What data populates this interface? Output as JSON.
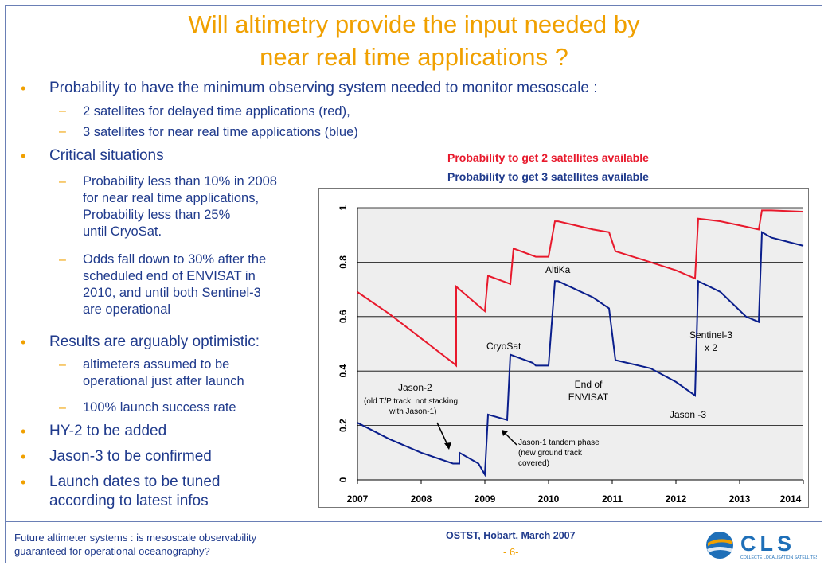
{
  "title": [
    "Will altimetry provide the input needed by",
    "near real time applications ?"
  ],
  "bullets": {
    "b1": "Probability to have the minimum observing system needed to monitor mesoscale :",
    "b1_s1": "2 satellites for delayed time applications (red),",
    "b1_s2": "3 satellites for near real time applications (blue)",
    "b2": "Critical situations",
    "b2_s1": [
      "Probability less than 10% in 2008",
      "for near real time applications,",
      "Probability less than 25%",
      "until CryoSat."
    ],
    "b2_s2": [
      "Odds fall down to 30% after the",
      "scheduled end of ENVISAT in",
      "2010, and until both Sentinel-3",
      "are operational"
    ],
    "b3": "Results are arguably optimistic:",
    "b3_s1": [
      "altimeters assumed to be",
      "operational just after launch"
    ],
    "b3_s2": "100% launch success rate",
    "b4": "HY-2 to be added",
    "b5": "Jason-3 to be confirmed",
    "b6": [
      "Launch dates to be tuned",
      "according to latest infos"
    ]
  },
  "legend": {
    "red": "Probability to get 2 satellites available",
    "blue": "Probability to get 3 satellites available"
  },
  "colors": {
    "red": "#e8192c",
    "blue": "#0a1e8c",
    "orange": "#f0a000",
    "text": "#1f3a8c"
  },
  "chart_data": {
    "type": "line",
    "xlim": [
      2007,
      2014
    ],
    "ylim": [
      0,
      1
    ],
    "x_ticks": [
      "2007",
      "2008",
      "2009",
      "2010",
      "2011",
      "2012",
      "2013",
      "2014"
    ],
    "y_ticks": [
      "0",
      "0.2",
      "0.4",
      "0.6",
      "0.8",
      "1"
    ],
    "series": [
      {
        "name": "Probability to get 2 satellites available",
        "color": "#e8192c",
        "x": [
          2007,
          2007.5,
          2008,
          2008.5,
          2008.55,
          2008.55,
          2008.9,
          2009,
          2009.05,
          2009.4,
          2009.45,
          2009.8,
          2009.85,
          2010,
          2010.1,
          2010.15,
          2010.7,
          2010.95,
          2011.05,
          2011.6,
          2012,
          2012.3,
          2012.35,
          2012.7,
          2013.1,
          2013.3,
          2013.35,
          2013.45,
          2013.5,
          2014
        ],
        "y": [
          0.69,
          0.61,
          0.52,
          0.43,
          0.42,
          0.71,
          0.64,
          0.62,
          0.75,
          0.72,
          0.85,
          0.82,
          0.82,
          0.82,
          0.95,
          0.95,
          0.92,
          0.91,
          0.84,
          0.8,
          0.77,
          0.74,
          0.96,
          0.95,
          0.93,
          0.92,
          0.99,
          0.99,
          0.99,
          0.985
        ]
      },
      {
        "name": "Probability to get 3 satellites available",
        "color": "#0a1e8c",
        "x": [
          2007,
          2007.5,
          2008,
          2008.5,
          2008.6,
          2008.6,
          2008.9,
          2009,
          2009.05,
          2009.35,
          2009.4,
          2009.75,
          2009.8,
          2010,
          2010.1,
          2010.15,
          2010.7,
          2010.95,
          2011.05,
          2011.6,
          2012,
          2012.3,
          2012.35,
          2012.7,
          2013.1,
          2013.3,
          2013.35,
          2013.5,
          2014
        ],
        "y": [
          0.21,
          0.15,
          0.1,
          0.06,
          0.06,
          0.1,
          0.06,
          0.02,
          0.24,
          0.22,
          0.46,
          0.43,
          0.42,
          0.42,
          0.73,
          0.73,
          0.67,
          0.63,
          0.44,
          0.41,
          0.36,
          0.31,
          0.73,
          0.69,
          0.6,
          0.58,
          0.91,
          0.89,
          0.86
        ]
      }
    ],
    "annotations": {
      "altika": "AltiKa",
      "cryosat": "CryoSat",
      "jason2": "Jason-2",
      "jason2_note": [
        "(old T/P track, not stacking",
        "with Jason-1)"
      ],
      "envisat": [
        "End of",
        "ENVISAT"
      ],
      "sentinel": [
        "Sentinel-3",
        "x 2"
      ],
      "jason3": "Jason -3",
      "tandem": [
        "Jason-1 tandem phase",
        "(new ground track",
        "covered)"
      ]
    }
  },
  "footer": {
    "left": [
      "Future altimeter systems : is mesoscale observability",
      "guaranteed for operational oceanography?"
    ],
    "conference": "OSTST, Hobart, March 2007",
    "page": "- 6-",
    "logo_text": "CLS",
    "logo_sub": "COLLECTE LOCALISATION SATELLITES"
  }
}
